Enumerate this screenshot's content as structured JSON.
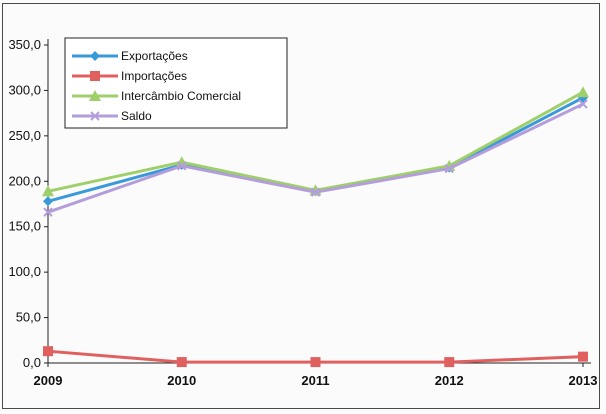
{
  "chart_data": {
    "type": "line",
    "x": [
      "2009",
      "2010",
      "2011",
      "2012",
      "2013"
    ],
    "ylim": [
      0,
      350
    ],
    "yticks": [
      "0,0",
      "50,0",
      "100,0",
      "150,0",
      "200,0",
      "250,0",
      "300,0",
      "350,0"
    ],
    "grid": false,
    "legend_position": "top-left",
    "series": [
      {
        "name": "Exportações",
        "color": "#3a9ad9",
        "marker": "diamond",
        "values": [
          178,
          218,
          189,
          215,
          292
        ]
      },
      {
        "name": "Importações",
        "color": "#e06060",
        "marker": "square",
        "values": [
          13,
          1,
          1,
          1,
          7
        ]
      },
      {
        "name": "Intercâmbio Comercial",
        "color": "#9fcf6a",
        "marker": "triangle",
        "values": [
          189,
          221,
          190,
          217,
          298
        ]
      },
      {
        "name": "Saldo",
        "color": "#b39ddb",
        "marker": "x",
        "values": [
          166,
          217,
          188,
          214,
          285
        ]
      }
    ]
  }
}
